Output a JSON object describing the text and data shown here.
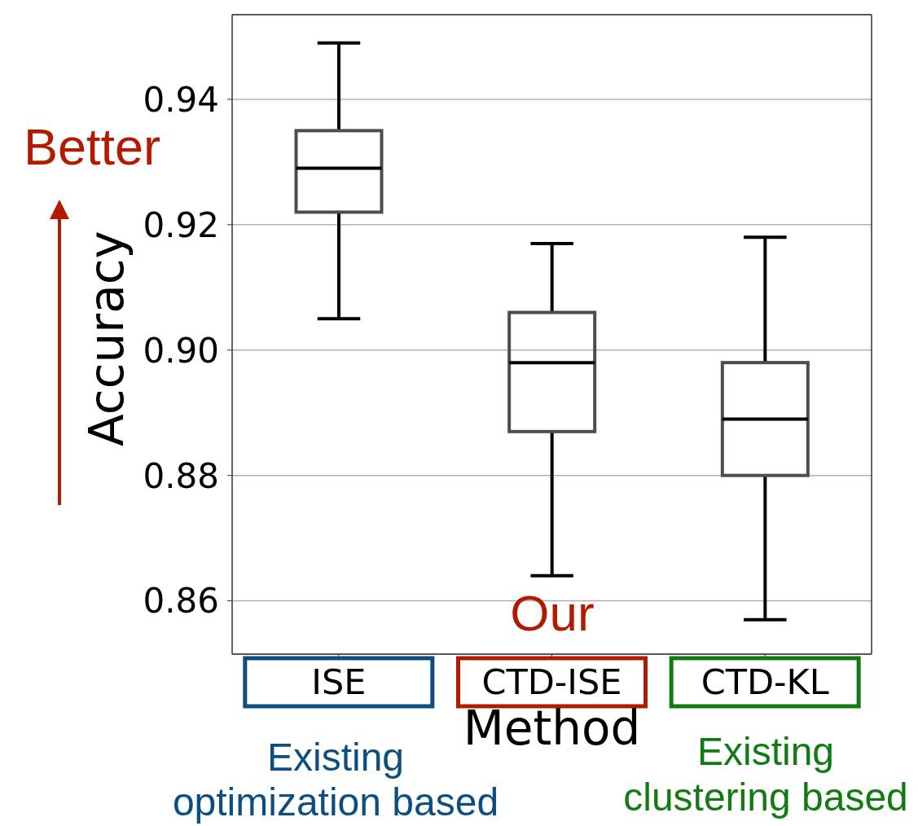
{
  "chart_data": {
    "type": "box",
    "xlabel": "Method",
    "ylabel": "Accuracy",
    "categories": [
      "ISE",
      "CTD-ISE",
      "CTD-KL"
    ],
    "boxes": [
      {
        "low": 0.905,
        "q1": 0.922,
        "median": 0.929,
        "q3": 0.935,
        "high": 0.949
      },
      {
        "low": 0.864,
        "q1": 0.887,
        "median": 0.898,
        "q3": 0.906,
        "high": 0.917
      },
      {
        "low": 0.857,
        "q1": 0.88,
        "median": 0.889,
        "q3": 0.898,
        "high": 0.918
      }
    ],
    "color": "#4d4d4d",
    "ylim": [
      0.8515,
      0.9535
    ],
    "yticks": [
      0.86,
      0.88,
      {
        "value": 0.9,
        "label": "0.90"
      },
      0.92,
      0.94
    ],
    "grid": "y",
    "annotations": [
      "Better",
      "Our",
      "Existing\noptimization based",
      "Existing\nclustering based"
    ]
  }
}
